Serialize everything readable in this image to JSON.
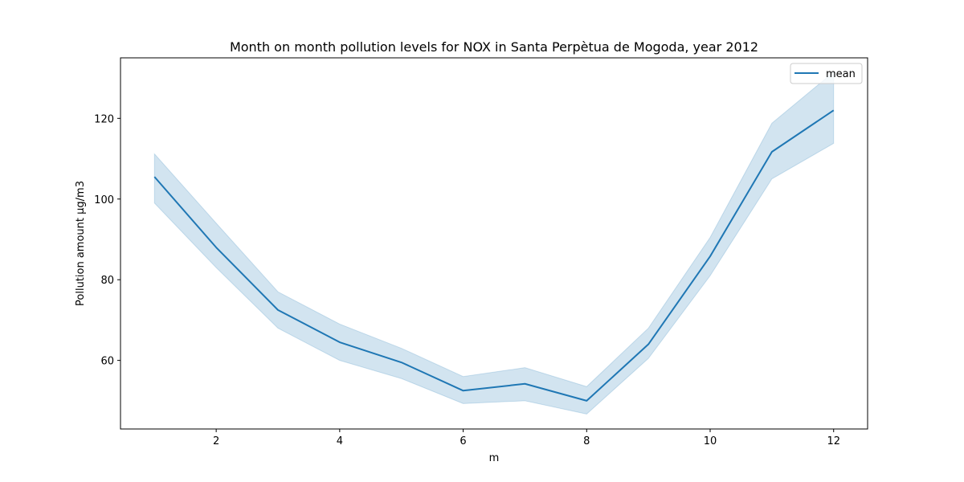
{
  "chart_data": {
    "type": "line",
    "title": "Month on month pollution levels for NOX in Santa Perpètua de Mogoda, year 2012",
    "xlabel": "m",
    "ylabel": "Pollution amount µg/m3",
    "xlim": [
      0.45,
      12.55
    ],
    "ylim": [
      43,
      135
    ],
    "xticks": [
      2,
      4,
      6,
      8,
      10,
      12
    ],
    "yticks": [
      60,
      80,
      100,
      120
    ],
    "grid": false,
    "legend": {
      "position": "top-right",
      "entries": [
        "mean"
      ]
    },
    "x": [
      1,
      2,
      3,
      4,
      5,
      6,
      7,
      8,
      9,
      10,
      11,
      12
    ],
    "series": [
      {
        "name": "mean",
        "color": "#1f77b4",
        "values": [
          105.5,
          88.0,
          72.5,
          64.5,
          59.5,
          52.5,
          54.2,
          50.0,
          64.0,
          85.8,
          111.7,
          122.0
        ],
        "ci_lower": [
          99.0,
          83.0,
          68.0,
          60.0,
          55.5,
          49.3,
          50.0,
          46.7,
          60.5,
          81.0,
          105.0,
          113.8
        ],
        "ci_upper": [
          111.2,
          94.0,
          77.0,
          69.0,
          63.0,
          56.0,
          58.2,
          53.5,
          68.0,
          90.5,
          118.8,
          131.5
        ]
      }
    ]
  }
}
